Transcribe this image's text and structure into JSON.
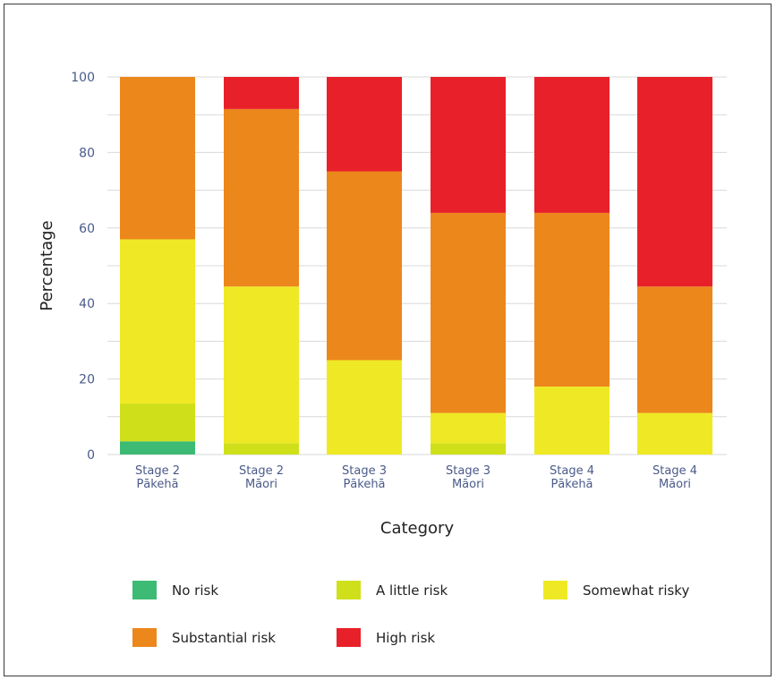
{
  "chart_data": {
    "type": "bar",
    "stacked": true,
    "title": "",
    "xlabel": "Category",
    "ylabel": "Percentage",
    "ylim": [
      0,
      100
    ],
    "yticks": [
      0,
      20,
      40,
      60,
      80,
      100
    ],
    "categories": [
      [
        "Stage 2",
        "Pākehā"
      ],
      [
        "Stage 2",
        "Māori"
      ],
      [
        "Stage 3",
        "Pākehā"
      ],
      [
        "Stage 3",
        "Māori"
      ],
      [
        "Stage 4",
        "Pākehā"
      ],
      [
        "Stage 4",
        "Māori"
      ]
    ],
    "grid": true,
    "legend_position": "bottom",
    "series": [
      {
        "name": "No risk",
        "color": "#3dbb74",
        "values": [
          3.5,
          0,
          0,
          0,
          0,
          0
        ]
      },
      {
        "name": "A little risk",
        "color": "#cfe01a",
        "values": [
          10,
          3,
          0,
          3,
          0,
          0
        ]
      },
      {
        "name": "Somewhat risky",
        "color": "#efe925",
        "values": [
          43.5,
          41.5,
          25,
          8,
          18,
          11
        ]
      },
      {
        "name": "Substantial risk",
        "color": "#ec871c",
        "values": [
          43,
          47,
          50,
          53,
          46,
          33.5
        ]
      },
      {
        "name": "High risk",
        "color": "#e8202a",
        "values": [
          0,
          8.5,
          25,
          36,
          36,
          55.5
        ]
      }
    ]
  }
}
